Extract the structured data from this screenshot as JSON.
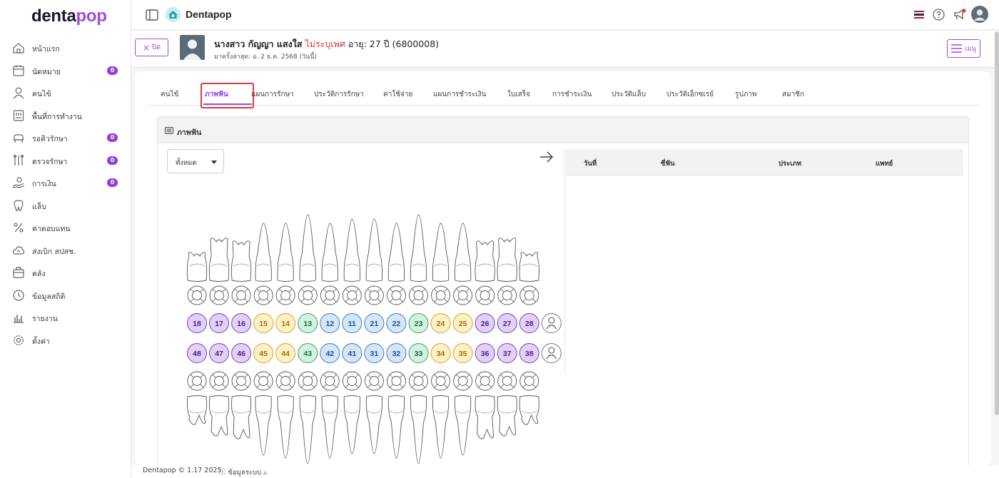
{
  "sidebar": {
    "logo_main": "denta",
    "logo_accent": "pop",
    "items": [
      {
        "label": "หน้าแรก",
        "icon": "home-icon",
        "badge": ""
      },
      {
        "label": "นัดหมาย",
        "icon": "calendar-icon",
        "badge": "0"
      },
      {
        "label": "คนไข้",
        "icon": "user-icon",
        "badge": ""
      },
      {
        "label": "พื้นที่การทำงาน",
        "icon": "workspace-icon",
        "badge": ""
      },
      {
        "label": "รอคิวรักษา",
        "icon": "dental-chair-icon",
        "badge": "0"
      },
      {
        "label": "ตรวจรักษา",
        "icon": "dental-tools-icon",
        "badge": "0"
      },
      {
        "label": "การเงิน",
        "icon": "money-hand-icon",
        "badge": "0"
      },
      {
        "label": "แล็บ",
        "icon": "tooth-icon",
        "badge": ""
      },
      {
        "label": "ค่าตอบแทน",
        "icon": "percent-icon",
        "badge": ""
      },
      {
        "label": "ส่งเบิก สปสช.",
        "icon": "cloud-icon",
        "badge": ""
      },
      {
        "label": "คลัง",
        "icon": "box-icon",
        "badge": ""
      },
      {
        "label": "ข้อมูลสถิติ",
        "icon": "stats-icon",
        "badge": ""
      },
      {
        "label": "รายงาน",
        "icon": "report-icon",
        "badge": ""
      },
      {
        "label": "ตั้งค่า",
        "icon": "gear-icon",
        "badge": ""
      }
    ]
  },
  "topbar": {
    "title": "Dentapop",
    "icons": [
      "sidebar-toggle-icon",
      "clinic-logo-icon",
      "thai-flag-icon",
      "help-icon",
      "announcement-icon",
      "profile-avatar-icon"
    ],
    "flag_colors": [
      "#a51931",
      "#f4f5f8",
      "#2d2a4a"
    ]
  },
  "patient": {
    "close_label": "ปิด",
    "name": "นางสาว กัญญา แสงใส",
    "gender": "ไม่ระบุเพศ",
    "age": "อายุ: 27 ปี",
    "hn": "(6800008)",
    "last_visit": "มาครั้งล่าสุด: อ. 2 ธ.ค. 2568 (วันนี้)",
    "menu_label": "เมนู"
  },
  "tabs": [
    {
      "label": "คนไข้",
      "active": false
    },
    {
      "label": "ภาพฟัน",
      "active": true
    },
    {
      "label": "แผนการรักษา",
      "active": false
    },
    {
      "label": "ประวัติการรักษา",
      "active": false
    },
    {
      "label": "ค่าใช้จ่าย",
      "active": false
    },
    {
      "label": "แผนการชำระเงิน",
      "active": false
    },
    {
      "label": "ใบเสร็จ",
      "active": false
    },
    {
      "label": "การชำระเงิน",
      "active": false
    },
    {
      "label": "ประวัติแล็บ",
      "active": false
    },
    {
      "label": "ประวัติเอ็กซเรย์",
      "active": false
    },
    {
      "label": "รูปภาพ",
      "active": false
    },
    {
      "label": "สมาชิก",
      "active": false
    }
  ],
  "dental": {
    "section_title": "ภาพฟัน",
    "filter_value": "ทั้งหมด",
    "table_headers": [
      "วันที่",
      "ซี่ฟัน",
      "ประเภท",
      "แพทย์"
    ],
    "upper_teeth": [
      "18",
      "17",
      "16",
      "15",
      "14",
      "13",
      "12",
      "11",
      "21",
      "22",
      "23",
      "24",
      "25",
      "26",
      "27",
      "28"
    ],
    "lower_teeth": [
      "48",
      "47",
      "46",
      "45",
      "44",
      "43",
      "42",
      "41",
      "31",
      "32",
      "33",
      "34",
      "35",
      "36",
      "37",
      "38"
    ],
    "colors": {
      "molar": {
        "fill": "#e2d0f7",
        "stroke": "#7b3fc4",
        "text": "#4b1c8a"
      },
      "premolar": {
        "fill": "#fcf1c7",
        "stroke": "#d9a520",
        "text": "#a37000"
      },
      "canine": {
        "fill": "#d3f1e0",
        "stroke": "#3aa565",
        "text": "#1e6e40"
      },
      "incisor": {
        "fill": "#d5e6f8",
        "stroke": "#3b7cc9",
        "text": "#1d4f8f"
      }
    }
  },
  "footer": {
    "copyright": "Dentapop © 1.17 2025",
    "sysinfo": "ข้อมูลระบบ ▵"
  }
}
